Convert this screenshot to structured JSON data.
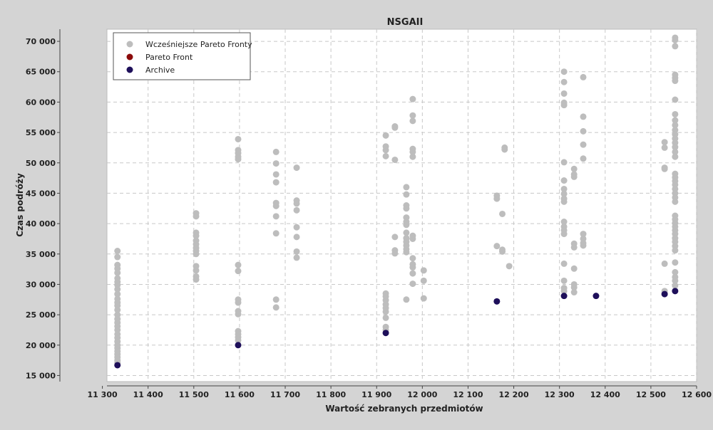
{
  "chart_data": {
    "type": "scatter",
    "title": "NSGAII",
    "xlabel": "Wartość zebranych przedmiotów",
    "ylabel": "Czas podróży",
    "xlim": [
      11310,
      12600
    ],
    "ylim": [
      14000,
      72000
    ],
    "x_ticks": [
      11300,
      11400,
      11500,
      11600,
      11700,
      11800,
      11900,
      12000,
      12100,
      12200,
      12300,
      12400,
      12500,
      12600
    ],
    "x_tick_labels": [
      "11 300",
      "11 400",
      "11 500",
      "11 600",
      "11 700",
      "11 800",
      "11 900",
      "12 000",
      "12 100",
      "12 200",
      "12 300",
      "12 400",
      "12 500",
      "12 600"
    ],
    "y_ticks": [
      15000,
      20000,
      25000,
      30000,
      35000,
      40000,
      45000,
      50000,
      55000,
      60000,
      65000,
      70000
    ],
    "y_tick_labels": [
      "15 000",
      "20 000",
      "25 000",
      "30 000",
      "35 000",
      "40 000",
      "45 000",
      "50 000",
      "55 000",
      "60 000",
      "65 000",
      "70 000"
    ],
    "grid": true,
    "legend_position": "top-left",
    "series": [
      {
        "name": "Wcześniejsze Pareto Fronty",
        "color": "#bdbdbd",
        "points": [
          [
            11333,
            35500
          ],
          [
            11333,
            34500
          ],
          [
            11333,
            33200
          ],
          [
            11333,
            32600
          ],
          [
            11333,
            31900
          ],
          [
            11333,
            31000
          ],
          [
            11333,
            30400
          ],
          [
            11333,
            29900
          ],
          [
            11333,
            29200
          ],
          [
            11333,
            28400
          ],
          [
            11333,
            27600
          ],
          [
            11333,
            27000
          ],
          [
            11333,
            26500
          ],
          [
            11333,
            25800
          ],
          [
            11333,
            25000
          ],
          [
            11333,
            24300
          ],
          [
            11333,
            23700
          ],
          [
            11333,
            23100
          ],
          [
            11333,
            22500
          ],
          [
            11333,
            21800
          ],
          [
            11333,
            21200
          ],
          [
            11333,
            20600
          ],
          [
            11333,
            20000
          ],
          [
            11333,
            19500
          ],
          [
            11333,
            19000
          ],
          [
            11333,
            18500
          ],
          [
            11333,
            18000
          ],
          [
            11333,
            17500
          ],
          [
            11333,
            17100
          ],
          [
            11505,
            41700
          ],
          [
            11505,
            41200
          ],
          [
            11505,
            38500
          ],
          [
            11505,
            38000
          ],
          [
            11505,
            37200
          ],
          [
            11505,
            36600
          ],
          [
            11505,
            36000
          ],
          [
            11505,
            35500
          ],
          [
            11505,
            35000
          ],
          [
            11505,
            33000
          ],
          [
            11505,
            32300
          ],
          [
            11505,
            31300
          ],
          [
            11505,
            30800
          ],
          [
            11597,
            53900
          ],
          [
            11597,
            52100
          ],
          [
            11597,
            51600
          ],
          [
            11597,
            51000
          ],
          [
            11597,
            50600
          ],
          [
            11597,
            33200
          ],
          [
            11597,
            32200
          ],
          [
            11597,
            27500
          ],
          [
            11597,
            27000
          ],
          [
            11597,
            25600
          ],
          [
            11597,
            25100
          ],
          [
            11597,
            22300
          ],
          [
            11597,
            21800
          ],
          [
            11597,
            21300
          ],
          [
            11597,
            20800
          ],
          [
            11680,
            51800
          ],
          [
            11680,
            49900
          ],
          [
            11680,
            48100
          ],
          [
            11680,
            46800
          ],
          [
            11680,
            43400
          ],
          [
            11680,
            42900
          ],
          [
            11680,
            41200
          ],
          [
            11680,
            38400
          ],
          [
            11680,
            27500
          ],
          [
            11680,
            26200
          ],
          [
            11725,
            49200
          ],
          [
            11725,
            43800
          ],
          [
            11725,
            43300
          ],
          [
            11725,
            42200
          ],
          [
            11725,
            39400
          ],
          [
            11725,
            37800
          ],
          [
            11725,
            35400
          ],
          [
            11725,
            34400
          ],
          [
            11920,
            54500
          ],
          [
            11920,
            52700
          ],
          [
            11920,
            52100
          ],
          [
            11920,
            51100
          ],
          [
            11920,
            28500
          ],
          [
            11920,
            28000
          ],
          [
            11920,
            27400
          ],
          [
            11920,
            26700
          ],
          [
            11920,
            26100
          ],
          [
            11920,
            25500
          ],
          [
            11920,
            24500
          ],
          [
            11920,
            23000
          ],
          [
            11920,
            22500
          ],
          [
            11940,
            56000
          ],
          [
            11940,
            55800
          ],
          [
            11940,
            50500
          ],
          [
            11940,
            37800
          ],
          [
            11940,
            35600
          ],
          [
            11940,
            35100
          ],
          [
            11965,
            46000
          ],
          [
            11965,
            44800
          ],
          [
            11965,
            43000
          ],
          [
            11965,
            42500
          ],
          [
            11965,
            41000
          ],
          [
            11965,
            40300
          ],
          [
            11965,
            39800
          ],
          [
            11965,
            38500
          ],
          [
            11965,
            37600
          ],
          [
            11965,
            37000
          ],
          [
            11965,
            36400
          ],
          [
            11965,
            35800
          ],
          [
            11965,
            35300
          ],
          [
            11965,
            27500
          ],
          [
            11979,
            60500
          ],
          [
            11979,
            57800
          ],
          [
            11979,
            56900
          ],
          [
            11979,
            52300
          ],
          [
            11979,
            51800
          ],
          [
            11979,
            51000
          ],
          [
            11979,
            38000
          ],
          [
            11979,
            37500
          ],
          [
            11979,
            34300
          ],
          [
            11979,
            33300
          ],
          [
            11979,
            32800
          ],
          [
            11979,
            31800
          ],
          [
            11979,
            30100
          ],
          [
            12003,
            32300
          ],
          [
            12003,
            30600
          ],
          [
            12003,
            27700
          ],
          [
            12163,
            44600
          ],
          [
            12163,
            44100
          ],
          [
            12163,
            36300
          ],
          [
            12175,
            41600
          ],
          [
            12175,
            35700
          ],
          [
            12175,
            35400
          ],
          [
            12180,
            52500
          ],
          [
            12180,
            52200
          ],
          [
            12190,
            33000
          ],
          [
            12310,
            65000
          ],
          [
            12310,
            63300
          ],
          [
            12310,
            61400
          ],
          [
            12310,
            59900
          ],
          [
            12310,
            59500
          ],
          [
            12310,
            50100
          ],
          [
            12310,
            47100
          ],
          [
            12310,
            45700
          ],
          [
            12310,
            44900
          ],
          [
            12310,
            44100
          ],
          [
            12310,
            43600
          ],
          [
            12310,
            40300
          ],
          [
            12310,
            39500
          ],
          [
            12310,
            38900
          ],
          [
            12310,
            38300
          ],
          [
            12310,
            33400
          ],
          [
            12310,
            30600
          ],
          [
            12310,
            29400
          ],
          [
            12310,
            28900
          ],
          [
            12332,
            49000
          ],
          [
            12332,
            48100
          ],
          [
            12332,
            47700
          ],
          [
            12332,
            36700
          ],
          [
            12332,
            36100
          ],
          [
            12332,
            32600
          ],
          [
            12332,
            30000
          ],
          [
            12332,
            29500
          ],
          [
            12332,
            28700
          ],
          [
            12352,
            64100
          ],
          [
            12352,
            57600
          ],
          [
            12352,
            55200
          ],
          [
            12352,
            53000
          ],
          [
            12352,
            50700
          ],
          [
            12352,
            38300
          ],
          [
            12352,
            37500
          ],
          [
            12352,
            36800
          ],
          [
            12352,
            36400
          ],
          [
            12530,
            53400
          ],
          [
            12530,
            52500
          ],
          [
            12530,
            49200
          ],
          [
            12530,
            49000
          ],
          [
            12530,
            33400
          ],
          [
            12530,
            28900
          ],
          [
            12553,
            70600
          ],
          [
            12553,
            70200
          ],
          [
            12553,
            69200
          ],
          [
            12553,
            64500
          ],
          [
            12553,
            64000
          ],
          [
            12553,
            63500
          ],
          [
            12553,
            60400
          ],
          [
            12553,
            58000
          ],
          [
            12553,
            57000
          ],
          [
            12553,
            56200
          ],
          [
            12553,
            55400
          ],
          [
            12553,
            54700
          ],
          [
            12553,
            54000
          ],
          [
            12553,
            53300
          ],
          [
            12553,
            52600
          ],
          [
            12553,
            51800
          ],
          [
            12553,
            51000
          ],
          [
            12553,
            48200
          ],
          [
            12553,
            47600
          ],
          [
            12553,
            47000
          ],
          [
            12553,
            46400
          ],
          [
            12553,
            45700
          ],
          [
            12553,
            45000
          ],
          [
            12553,
            44300
          ],
          [
            12553,
            43600
          ],
          [
            12553,
            41300
          ],
          [
            12553,
            40700
          ],
          [
            12553,
            40100
          ],
          [
            12553,
            39500
          ],
          [
            12553,
            38900
          ],
          [
            12553,
            38300
          ],
          [
            12553,
            37600
          ],
          [
            12553,
            37000
          ],
          [
            12553,
            36300
          ],
          [
            12553,
            35600
          ],
          [
            12553,
            33600
          ],
          [
            12553,
            32000
          ],
          [
            12553,
            31200
          ],
          [
            12553,
            30600
          ],
          [
            12553,
            29800
          ]
        ]
      },
      {
        "name": "Pareto Front",
        "color": "#8b0a0a",
        "points": []
      },
      {
        "name": "Archive",
        "color": "#1e0f5a",
        "points": [
          [
            11333,
            16700
          ],
          [
            11597,
            20000
          ],
          [
            11920,
            22000
          ],
          [
            12163,
            27200
          ],
          [
            12310,
            28100
          ],
          [
            12380,
            28100
          ],
          [
            12530,
            28400
          ],
          [
            12553,
            28900
          ]
        ]
      }
    ]
  }
}
